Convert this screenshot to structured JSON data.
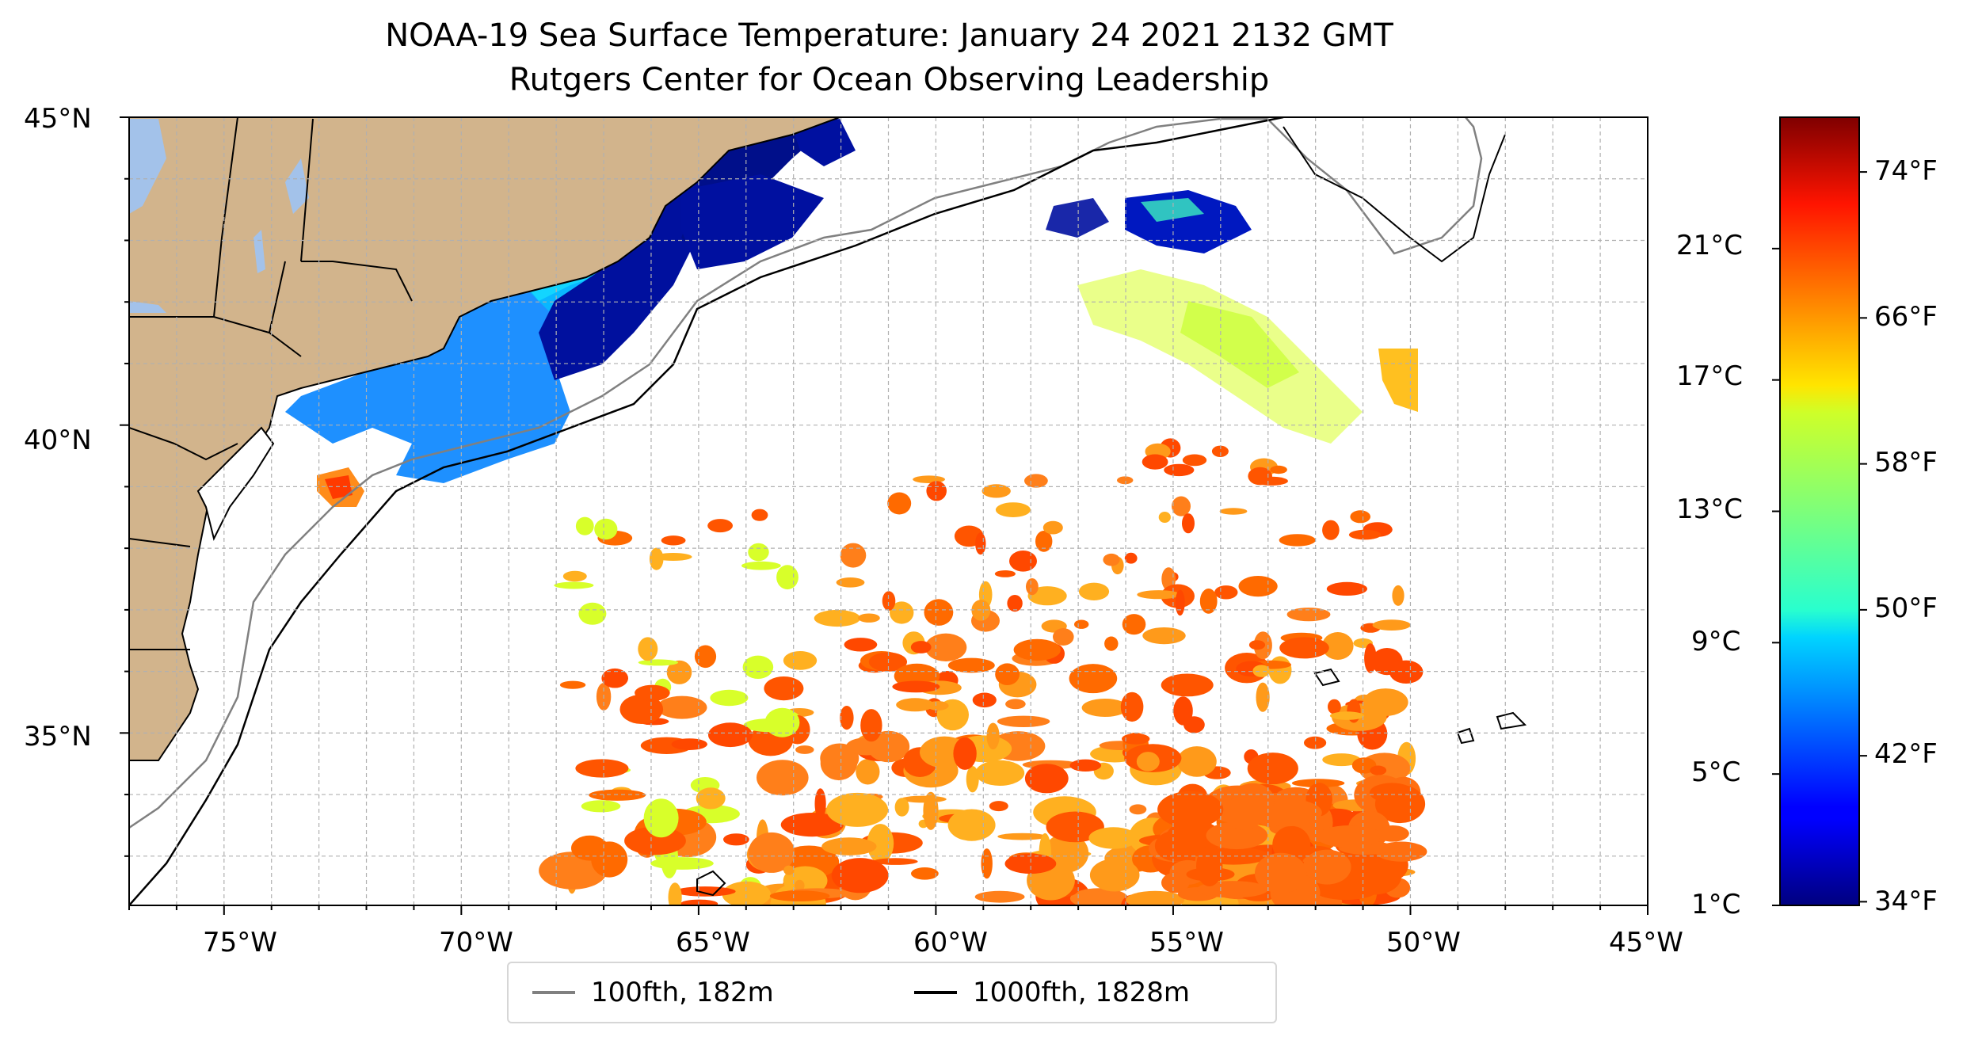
{
  "title": {
    "line1": "NOAA-19 Sea Surface Temperature: January 24 2021 2132 GMT",
    "line2": "Rutgers Center for Ocean Observing Leadership"
  },
  "map": {
    "lon_range": [
      -77,
      -45
    ],
    "lat_range": [
      32.2,
      45
    ],
    "longitude_ticks": [
      "75°W",
      "70°W",
      "65°W",
      "60°W",
      "55°W",
      "50°W",
      "45°W"
    ],
    "latitude_ticks": [
      "45°N",
      "40°N",
      "35°N"
    ],
    "land_color": "#d2b48c",
    "lake_color": "#a3c2ea",
    "grid": "dashed light gray every 1°",
    "contours": [
      {
        "name": "100fth, 182m",
        "color": "#808080"
      },
      {
        "name": "1000fth, 1828m",
        "color": "#000000"
      }
    ]
  },
  "legend": {
    "placement": "bottom-center",
    "items": [
      {
        "label": "100fth, 182m",
        "color": "#808080"
      },
      {
        "label": "1000fth, 1828m",
        "color": "#000000"
      }
    ]
  },
  "colorbar": {
    "colormap": "jet",
    "celsius_ticks": [
      "21°C",
      "17°C",
      "13°C",
      "9°C",
      "5°C",
      "1°C"
    ],
    "fahrenheit_ticks": [
      "74°F",
      "66°F",
      "58°F",
      "50°F",
      "42°F",
      "34°F"
    ],
    "range_f": [
      33.8,
      77
    ]
  }
}
